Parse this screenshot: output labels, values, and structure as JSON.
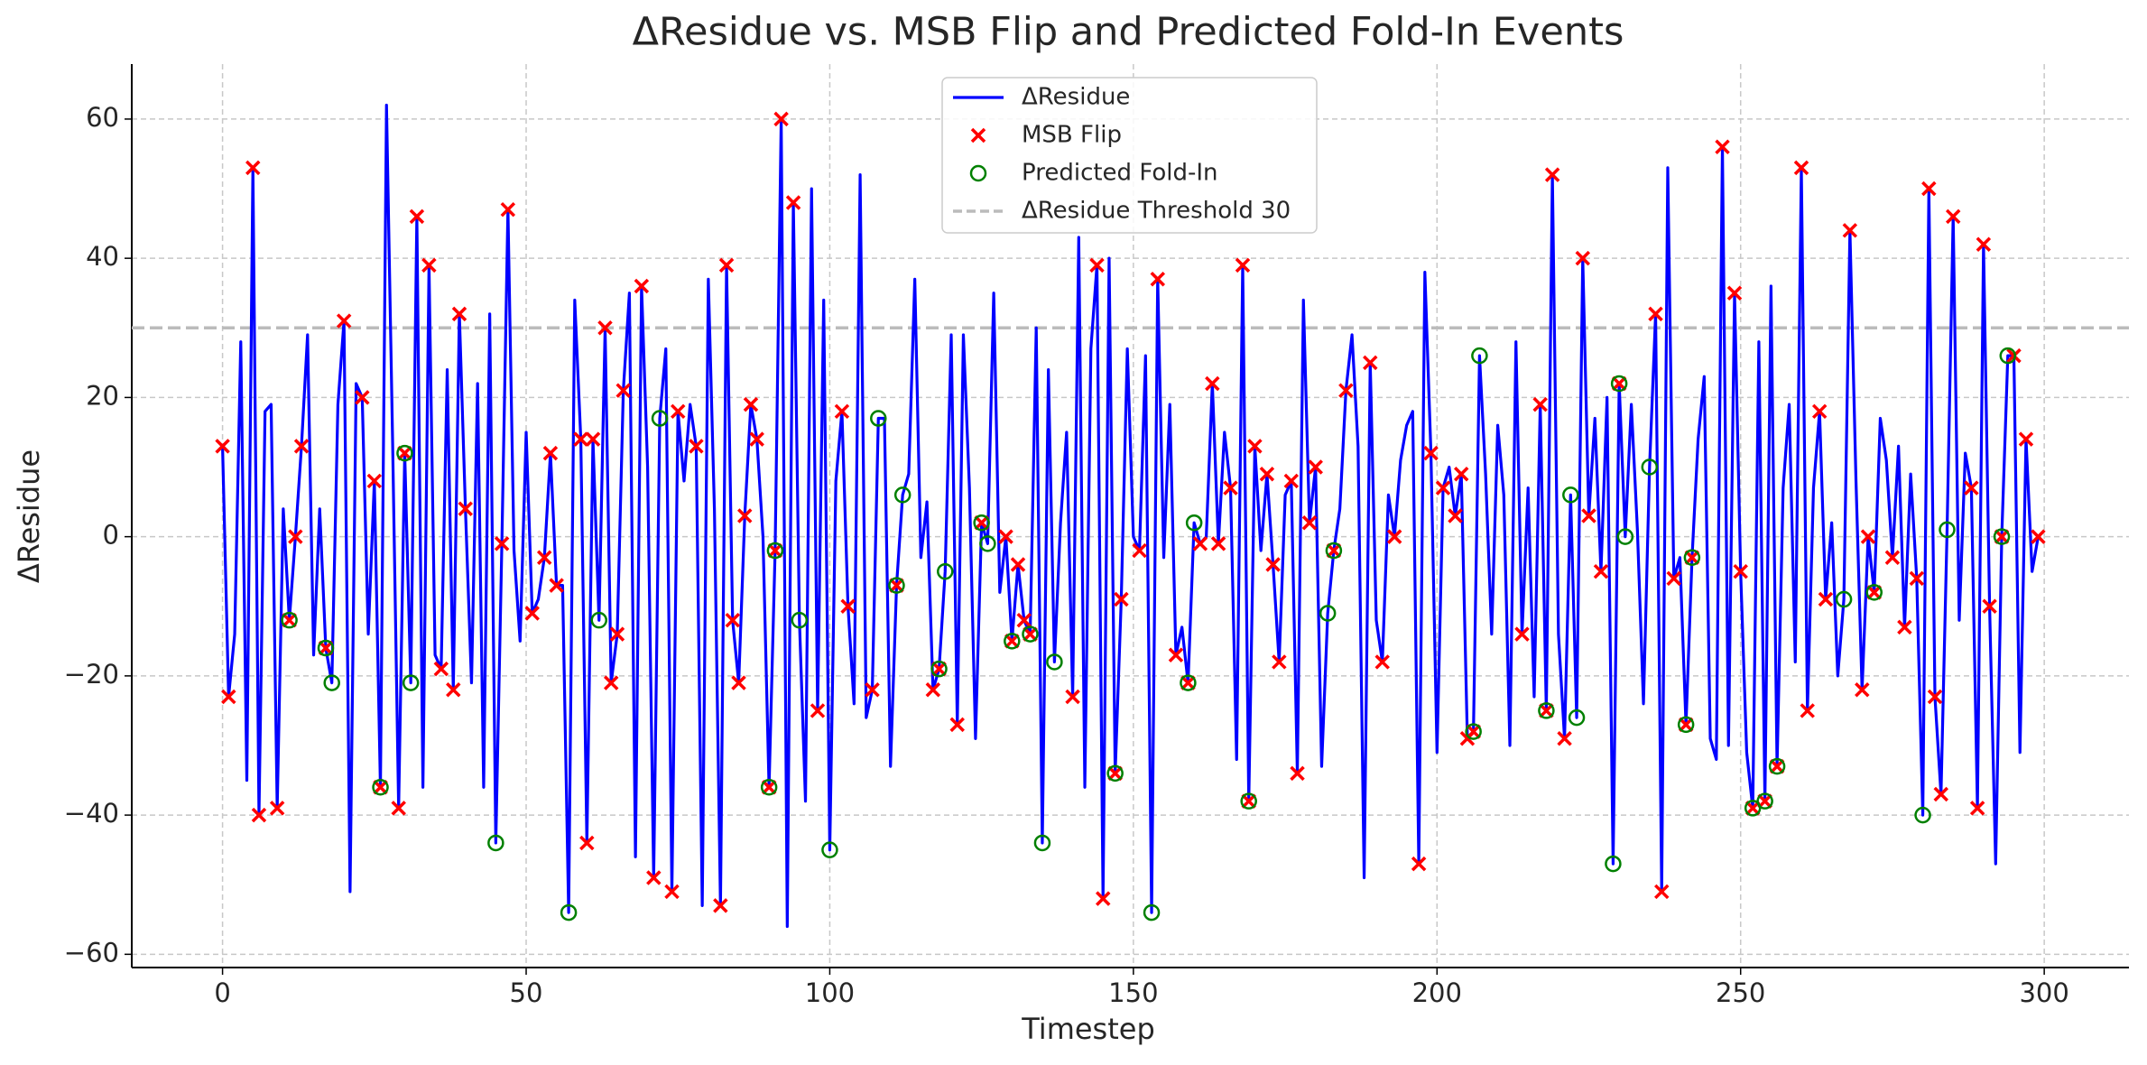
{
  "chart_data": {
    "type": "line",
    "title": "ΔResidue vs. MSB Flip and Predicted Fold-In Events",
    "x_label": "Timestep",
    "y_label": "ΔResidue",
    "xlim": [
      -14.95,
      313.95
    ],
    "ylim": [
      -61.9,
      67.9
    ],
    "xticks": [
      0,
      50,
      100,
      150,
      200,
      250,
      300
    ],
    "yticks": [
      {
        "value": -60,
        "label": "−60"
      },
      {
        "value": -40,
        "label": "−40"
      },
      {
        "value": -20,
        "label": "−20"
      },
      0,
      20,
      40,
      60
    ],
    "grid": true,
    "legend": "upper center",
    "series": [
      {
        "name": "ΔResidue",
        "type": "line",
        "color": "#0000ff",
        "x": [
          0,
          1,
          2,
          3,
          4,
          5,
          6,
          7,
          8,
          9,
          10,
          11,
          12,
          13,
          14,
          15,
          16,
          17,
          18,
          19,
          20,
          21,
          22,
          23,
          24,
          25,
          26,
          27,
          28,
          29,
          30,
          31,
          32,
          33,
          34,
          35,
          36,
          37,
          38,
          39,
          40,
          41,
          42,
          43,
          44,
          45,
          46,
          47,
          48,
          49,
          50,
          51,
          52,
          53,
          54,
          55,
          56,
          57,
          58,
          59,
          60,
          61,
          62,
          63,
          64,
          65,
          66,
          67,
          68,
          69,
          70,
          71,
          72,
          73,
          74,
          75,
          76,
          77,
          78,
          79,
          80,
          81,
          82,
          83,
          84,
          85,
          86,
          87,
          88,
          89,
          90,
          91,
          92,
          93,
          94,
          95,
          96,
          97,
          98,
          99,
          100,
          101,
          102,
          103,
          104,
          105,
          106,
          107,
          108,
          109,
          110,
          111,
          112,
          113,
          114,
          115,
          116,
          117,
          118,
          119,
          120,
          121,
          122,
          123,
          124,
          125,
          126,
          127,
          128,
          129,
          130,
          131,
          132,
          133,
          134,
          135,
          136,
          137,
          138,
          139,
          140,
          141,
          142,
          143,
          144,
          145,
          146,
          147,
          148,
          149,
          150,
          151,
          152,
          153,
          154,
          155,
          156,
          157,
          158,
          159,
          160,
          161,
          162,
          163,
          164,
          165,
          166,
          167,
          168,
          169,
          170,
          171,
          172,
          173,
          174,
          175,
          176,
          177,
          178,
          179,
          180,
          181,
          182,
          183,
          184,
          185,
          186,
          187,
          188,
          189,
          190,
          191,
          192,
          193,
          194,
          195,
          196,
          197,
          198,
          199,
          200,
          201,
          202,
          203,
          204,
          205,
          206,
          207,
          208,
          209,
          210,
          211,
          212,
          213,
          214,
          215,
          216,
          217,
          218,
          219,
          220,
          221,
          222,
          223,
          224,
          225,
          226,
          227,
          228,
          229,
          230,
          231,
          232,
          233,
          234,
          235,
          236,
          237,
          238,
          239,
          240,
          241,
          242,
          243,
          244,
          245,
          246,
          247,
          248,
          249,
          250,
          251,
          252,
          253,
          254,
          255,
          256,
          257,
          258,
          259,
          260,
          261,
          262,
          263,
          264,
          265,
          266,
          267,
          268,
          269,
          270,
          271,
          272,
          273,
          274,
          275,
          276,
          277,
          278,
          279,
          280,
          281,
          282,
          283,
          284,
          285,
          286,
          287,
          288,
          289,
          290,
          291,
          292,
          293,
          294,
          295,
          296,
          297,
          298,
          299
        ],
        "values": [
          13,
          -23,
          -14,
          28,
          -35,
          53,
          -40,
          18,
          19,
          -39,
          4,
          -12,
          0,
          13,
          29,
          -17,
          4,
          -16,
          -21,
          19,
          31,
          -51,
          22,
          20,
          -14,
          8,
          -36,
          62,
          14,
          -39,
          12,
          -21,
          46,
          -36,
          39,
          -17,
          -19,
          24,
          -22,
          32,
          4,
          -21,
          22,
          -36,
          32,
          -44,
          -1,
          47,
          -2,
          -15,
          15,
          -11,
          -9,
          -3,
          12,
          -7,
          -7,
          -54,
          34,
          14,
          -44,
          14,
          -12,
          30,
          -21,
          -14,
          21,
          35,
          -46,
          36,
          10,
          -49,
          17,
          27,
          -51,
          18,
          8,
          19,
          13,
          -53,
          37,
          4,
          -53,
          39,
          -12,
          -21,
          3,
          19,
          14,
          0,
          -36,
          -2,
          60,
          -56,
          48,
          -12,
          -38,
          50,
          -25,
          34,
          -45,
          8,
          18,
          -10,
          -24,
          52,
          -26,
          -22,
          17,
          17,
          -33,
          -7,
          6,
          9,
          37,
          -3,
          5,
          -22,
          -19,
          -5,
          29,
          -27,
          29,
          7,
          -29,
          2,
          -1,
          35,
          -8,
          0,
          -15,
          -4,
          -12,
          -14,
          30,
          -44,
          24,
          -18,
          2,
          15,
          -23,
          43,
          -36,
          27,
          39,
          -52,
          40,
          -34,
          -9,
          27,
          0,
          -2,
          26,
          -54,
          37,
          -3,
          19,
          -17,
          -13,
          -21,
          2,
          -1,
          0,
          22,
          -1,
          15,
          7,
          -32,
          39,
          -38,
          13,
          -2,
          9,
          -4,
          -18,
          6,
          8,
          -34,
          34,
          2,
          10,
          -33,
          -11,
          -2,
          4,
          21,
          29,
          13,
          -49,
          25,
          -12,
          -18,
          6,
          0,
          11,
          16,
          18,
          -47,
          38,
          12,
          -31,
          7,
          10,
          3,
          9,
          -29,
          -28,
          26,
          9,
          -14,
          16,
          6,
          -30,
          28,
          -14,
          7,
          -23,
          19,
          -25,
          52,
          -14,
          -29,
          6,
          -26,
          40,
          3,
          17,
          -5,
          20,
          -47,
          22,
          0,
          19,
          1,
          -24,
          10,
          32,
          -51,
          53,
          -6,
          -3,
          -27,
          -3,
          14,
          23,
          -29,
          -32,
          56,
          -30,
          35,
          -5,
          -31,
          -39,
          28,
          -38,
          36,
          -33,
          7,
          19,
          -18,
          53,
          -25,
          7,
          18,
          -9,
          2,
          -20,
          -9,
          44,
          8,
          -22,
          0,
          -8,
          17,
          11,
          -3,
          13,
          -13,
          9,
          -6,
          -40,
          50,
          -23,
          -37,
          1,
          46,
          -12,
          12,
          7,
          -39,
          42,
          -10,
          -47,
          0,
          26,
          26,
          -31,
          14,
          -5,
          0
        ]
      },
      {
        "name": "MSB Flip",
        "type": "scatter",
        "marker": "x",
        "color": "#ff0000",
        "x": [
          0,
          1,
          5,
          6,
          9,
          11,
          12,
          13,
          17,
          20,
          23,
          25,
          26,
          29,
          30,
          32,
          34,
          36,
          38,
          39,
          40,
          46,
          47,
          51,
          53,
          54,
          55,
          59,
          60,
          61,
          63,
          64,
          65,
          66,
          69,
          71,
          74,
          75,
          78,
          82,
          83,
          84,
          85,
          86,
          87,
          88,
          90,
          91,
          92,
          94,
          98,
          102,
          103,
          107,
          111,
          117,
          118,
          121,
          125,
          129,
          130,
          131,
          132,
          133,
          140,
          144,
          145,
          147,
          148,
          151,
          154,
          157,
          159,
          161,
          163,
          164,
          166,
          168,
          169,
          170,
          172,
          173,
          174,
          176,
          177,
          179,
          180,
          183,
          185,
          189,
          191,
          193,
          197,
          199,
          201,
          203,
          204,
          205,
          206,
          214,
          217,
          218,
          219,
          221,
          224,
          225,
          227,
          230,
          236,
          237,
          239,
          241,
          242,
          247,
          249,
          250,
          252,
          254,
          256,
          260,
          261,
          263,
          264,
          268,
          270,
          271,
          272,
          275,
          277,
          279,
          281,
          282,
          283,
          285,
          288,
          289,
          290,
          291,
          293,
          295,
          297,
          299
        ],
        "values": [
          13,
          -23,
          53,
          -40,
          -39,
          -12,
          0,
          13,
          -16,
          31,
          20,
          8,
          -36,
          -39,
          12,
          46,
          39,
          -19,
          -22,
          32,
          4,
          -1,
          47,
          -11,
          -3,
          12,
          -7,
          14,
          -44,
          14,
          30,
          -21,
          -14,
          21,
          36,
          -49,
          -51,
          18,
          13,
          -53,
          39,
          -12,
          -21,
          3,
          19,
          14,
          -36,
          -2,
          60,
          48,
          -25,
          18,
          -10,
          -22,
          -7,
          -22,
          -19,
          -27,
          2,
          0,
          -15,
          -4,
          -12,
          -14,
          -23,
          39,
          -52,
          -34,
          -9,
          -2,
          37,
          -17,
          -21,
          -1,
          22,
          -1,
          7,
          39,
          -38,
          13,
          9,
          -4,
          -18,
          8,
          -34,
          2,
          10,
          -2,
          21,
          25,
          -18,
          0,
          -47,
          12,
          7,
          3,
          9,
          -29,
          -28,
          -14,
          19,
          -25,
          52,
          -29,
          40,
          3,
          -5,
          22,
          32,
          -51,
          -6,
          -27,
          -3,
          56,
          35,
          -5,
          -39,
          -38,
          -33,
          53,
          -25,
          18,
          -9,
          44,
          -22,
          0,
          -8,
          -3,
          -13,
          -6,
          50,
          -23,
          -37,
          46,
          7,
          -39,
          42,
          -10,
          0,
          26,
          14,
          0
        ]
      },
      {
        "name": "Predicted Fold-In",
        "type": "scatter",
        "marker": "o",
        "color": "#008000",
        "x": [
          11,
          17,
          18,
          26,
          30,
          31,
          45,
          57,
          62,
          72,
          90,
          91,
          95,
          100,
          108,
          111,
          112,
          118,
          119,
          125,
          126,
          130,
          133,
          135,
          137,
          147,
          153,
          159,
          160,
          169,
          182,
          183,
          206,
          207,
          218,
          222,
          223,
          229,
          230,
          231,
          235,
          241,
          242,
          252,
          254,
          256,
          267,
          272,
          280,
          284,
          293,
          294
        ],
        "values": [
          -12,
          -16,
          -21,
          -36,
          12,
          -21,
          -44,
          -54,
          -12,
          17,
          -36,
          -2,
          -12,
          -45,
          17,
          -7,
          6,
          -19,
          -5,
          2,
          -1,
          -15,
          -14,
          -44,
          -18,
          -34,
          -54,
          -21,
          2,
          -38,
          -11,
          -2,
          -28,
          26,
          -25,
          6,
          -26,
          -47,
          22,
          0,
          10,
          -27,
          -3,
          -39,
          -38,
          -33,
          -9,
          -8,
          -40,
          1,
          0,
          26
        ]
      },
      {
        "name": "ΔResidue Threshold 30",
        "type": "hline",
        "color": "#bbbbbb",
        "value": 30
      }
    ]
  }
}
